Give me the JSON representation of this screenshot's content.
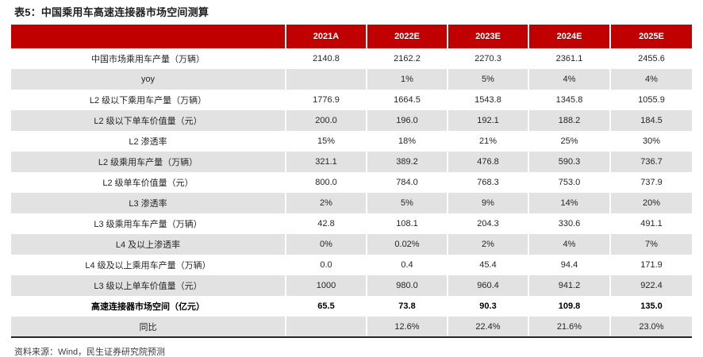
{
  "title": "表5：中国乘用车高速连接器市场空间测算",
  "footer": "资料来源：Wind，民生证券研究院预测",
  "colors": {
    "header_bg": "#c00000",
    "header_text": "#ffffff",
    "alt_row_bg": "#e2e2e2",
    "bottom_border": "#262626"
  },
  "table": {
    "columns": [
      "",
      "2021A",
      "2022E",
      "2023E",
      "2024E",
      "2025E"
    ],
    "rows": [
      {
        "label": "中国市场乘用车产量（万辆）",
        "values": [
          "2140.8",
          "2162.2",
          "2270.3",
          "2361.1",
          "2455.6"
        ],
        "bold": false
      },
      {
        "label": "yoy",
        "values": [
          "",
          "1%",
          "5%",
          "4%",
          "4%"
        ],
        "bold": false
      },
      {
        "label": "L2 级以下乘用车产量（万辆）",
        "values": [
          "1776.9",
          "1664.5",
          "1543.8",
          "1345.8",
          "1055.9"
        ],
        "bold": false
      },
      {
        "label": "L2 级以下单车价值量（元）",
        "values": [
          "200.0",
          "196.0",
          "192.1",
          "188.2",
          "184.5"
        ],
        "bold": false
      },
      {
        "label": "L2 渗透率",
        "values": [
          "15%",
          "18%",
          "21%",
          "25%",
          "30%"
        ],
        "bold": false
      },
      {
        "label": "L2 级乘用车产量（万辆）",
        "values": [
          "321.1",
          "389.2",
          "476.8",
          "590.3",
          "736.7"
        ],
        "bold": false
      },
      {
        "label": "L2 级单车价值量（元）",
        "values": [
          "800.0",
          "784.0",
          "768.3",
          "753.0",
          "737.9"
        ],
        "bold": false
      },
      {
        "label": "L3 渗透率",
        "values": [
          "2%",
          "5%",
          "9%",
          "14%",
          "20%"
        ],
        "bold": false
      },
      {
        "label": "L3 级乘用车车产量（万辆）",
        "values": [
          "42.8",
          "108.1",
          "204.3",
          "330.6",
          "491.1"
        ],
        "bold": false
      },
      {
        "label": "L4 及以上渗透率",
        "values": [
          "0%",
          "0.02%",
          "2%",
          "4%",
          "7%"
        ],
        "bold": false
      },
      {
        "label": "L4 级及以上乘用车产量（万辆）",
        "values": [
          "0.0",
          "0.4",
          "45.4",
          "94.4",
          "171.9"
        ],
        "bold": false
      },
      {
        "label": "L3 级以上单车价值量（元）",
        "values": [
          "1000",
          "980.0",
          "960.4",
          "941.2",
          "922.4"
        ],
        "bold": false
      },
      {
        "label": "高速连接器市场空间（亿元）",
        "values": [
          "65.5",
          "73.8",
          "90.3",
          "109.8",
          "135.0"
        ],
        "bold": true
      },
      {
        "label": "同比",
        "values": [
          "",
          "12.6%",
          "22.4%",
          "21.6%",
          "23.0%"
        ],
        "bold": false
      }
    ]
  }
}
